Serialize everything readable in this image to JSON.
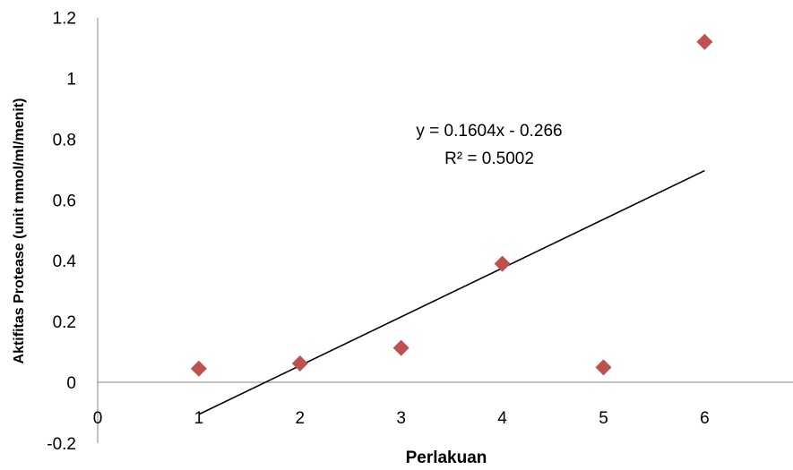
{
  "chart_data": {
    "type": "scatter",
    "title": "",
    "xlabel": "Perlakuan",
    "ylabel": "Aktifitas Protease (unit mmol/ml/menit)",
    "xlim": [
      0,
      6.9
    ],
    "ylim": [
      -0.2,
      1.2
    ],
    "x_ticks": [
      "0",
      "1",
      "2",
      "3",
      "4",
      "5",
      "6"
    ],
    "y_ticks": [
      "-0.2",
      "0",
      "0.2",
      "0.4",
      "0.6",
      "0.8",
      "1",
      "1.2"
    ],
    "grid": false,
    "legend": "none",
    "marker_color": "#c0504d",
    "trendline_color": "#000000",
    "points": [
      {
        "x": 1,
        "y": 0.045
      },
      {
        "x": 2,
        "y": 0.062
      },
      {
        "x": 3,
        "y": 0.113
      },
      {
        "x": 4,
        "y": 0.39
      },
      {
        "x": 5,
        "y": 0.049
      },
      {
        "x": 6,
        "y": 1.12
      }
    ],
    "trendline": {
      "slope": 0.1604,
      "intercept": -0.266,
      "x_range": [
        1,
        6
      ],
      "equation": "y = 0.1604x - 0.266",
      "r_squared": "R² = 0.5002"
    }
  }
}
